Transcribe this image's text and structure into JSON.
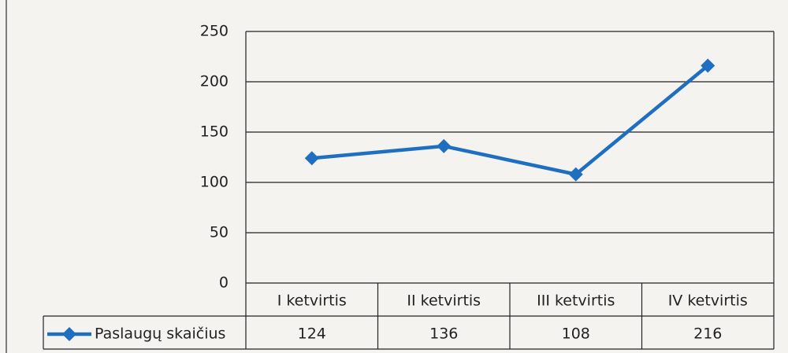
{
  "chart_data": {
    "type": "line",
    "categories": [
      "I ketvirtis",
      "II ketvirtis",
      "III ketvirtis",
      "IV ketvirtis"
    ],
    "series": [
      {
        "name": "Paslaugų skaičius",
        "color": "#1f6fc0",
        "values": [
          124,
          136,
          108,
          216
        ]
      }
    ],
    "ylim": [
      0,
      250
    ],
    "yticks": [
      0,
      50,
      100,
      150,
      200,
      250
    ],
    "grid": true,
    "legend": "bottom-left"
  }
}
